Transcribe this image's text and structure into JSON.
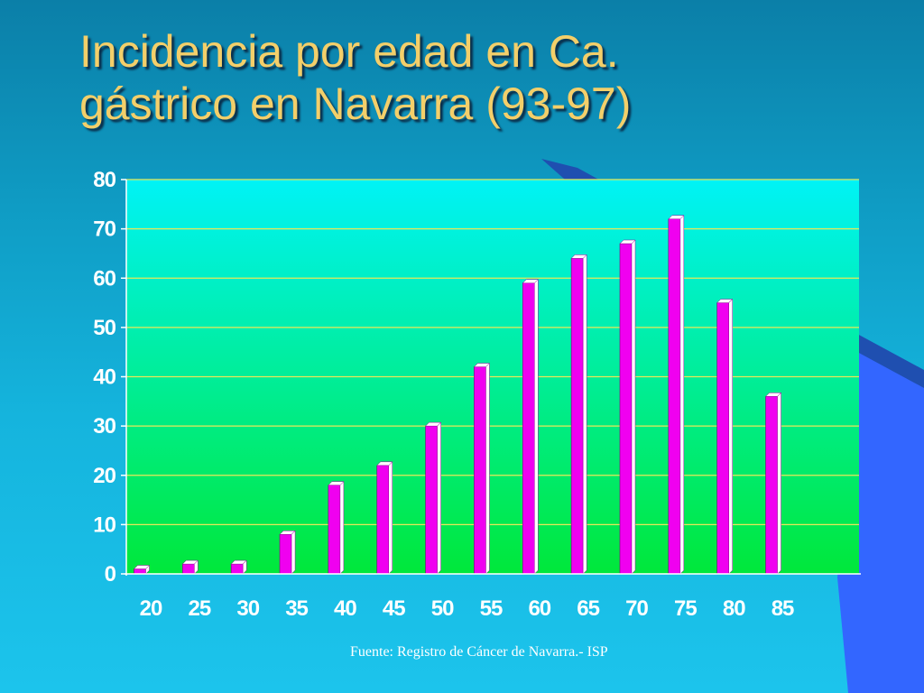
{
  "slide": {
    "title_line1": "Incidencia por edad en Ca.",
    "title_line2": "gástrico en Navarra (93-97)",
    "source": "Fuente: Registro de Cáncer de Navarra.- ISP"
  },
  "colors": {
    "background": "#15b4dd",
    "title": "#f3cf6a",
    "plot_top": "#00f3f6",
    "plot_bottom": "#00e83a",
    "bar": "#f000f0",
    "gridline": "#e8e85a",
    "decor_shape": "#3366ff"
  },
  "chart_data": {
    "type": "bar",
    "categories": [
      "20",
      "25",
      "30",
      "35",
      "40",
      "45",
      "50",
      "55",
      "60",
      "65",
      "70",
      "75",
      "80",
      "85"
    ],
    "values": [
      1,
      2,
      2,
      8,
      18,
      22,
      30,
      42,
      59,
      64,
      67,
      72,
      55,
      36
    ],
    "ylim": [
      0,
      80
    ],
    "yticks": [
      0,
      10,
      20,
      30,
      40,
      50,
      60,
      70,
      80
    ],
    "grid": true,
    "legend": "none"
  }
}
